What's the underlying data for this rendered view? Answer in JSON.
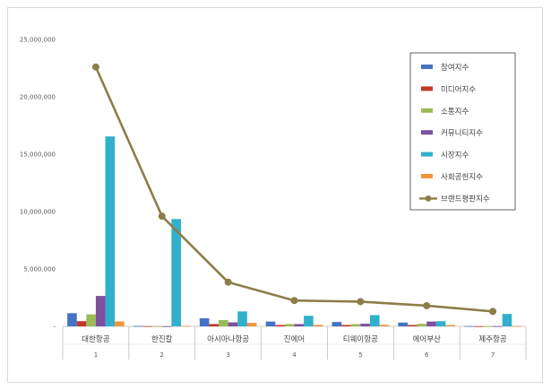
{
  "chart_data": {
    "type": "bar",
    "categories": [
      "대한항공",
      "한진칼",
      "아시아나항공",
      "진에어",
      "티웨이항공",
      "에어부산",
      "제주항공"
    ],
    "ranks": [
      "1",
      "2",
      "3",
      "4",
      "5",
      "6",
      "7"
    ],
    "ylim": [
      0,
      25000000
    ],
    "yticks": [
      0,
      5000000,
      10000000,
      15000000,
      20000000,
      25000000
    ],
    "ytick_labels": [
      "-",
      "5,000,000",
      "10,000,000",
      "15,000,000",
      "20,000,000",
      "25,000,000"
    ],
    "grid": false,
    "legend_position": "top-right",
    "series": [
      {
        "name": "참여지수",
        "color": "#4472c4",
        "type": "bar",
        "values": [
          1150000,
          30000,
          700000,
          420000,
          380000,
          330000,
          25000
        ]
      },
      {
        "name": "미디어지수",
        "color": "#c0392b",
        "type": "bar",
        "values": [
          450000,
          20000,
          200000,
          120000,
          120000,
          120000,
          15000
        ]
      },
      {
        "name": "소통지수",
        "color": "#9bbb59",
        "type": "bar",
        "values": [
          1050000,
          15000,
          550000,
          200000,
          200000,
          220000,
          15000
        ]
      },
      {
        "name": "커뮤니티지수",
        "color": "#7f4fa0",
        "type": "bar",
        "values": [
          2650000,
          10000,
          350000,
          200000,
          230000,
          420000,
          15000
        ]
      },
      {
        "name": "시장지수",
        "color": "#31b0cc",
        "type": "bar",
        "values": [
          16550000,
          9350000,
          1300000,
          920000,
          980000,
          450000,
          1080000
        ]
      },
      {
        "name": "사회공헌지수",
        "color": "#f0943c",
        "type": "bar",
        "values": [
          430000,
          40000,
          300000,
          130000,
          130000,
          110000,
          30000
        ]
      },
      {
        "name": "브랜드평판지수",
        "color": "#8c7d4a",
        "type": "line",
        "values": [
          22600000,
          9600000,
          3850000,
          2250000,
          2150000,
          1800000,
          1300000
        ]
      }
    ]
  }
}
